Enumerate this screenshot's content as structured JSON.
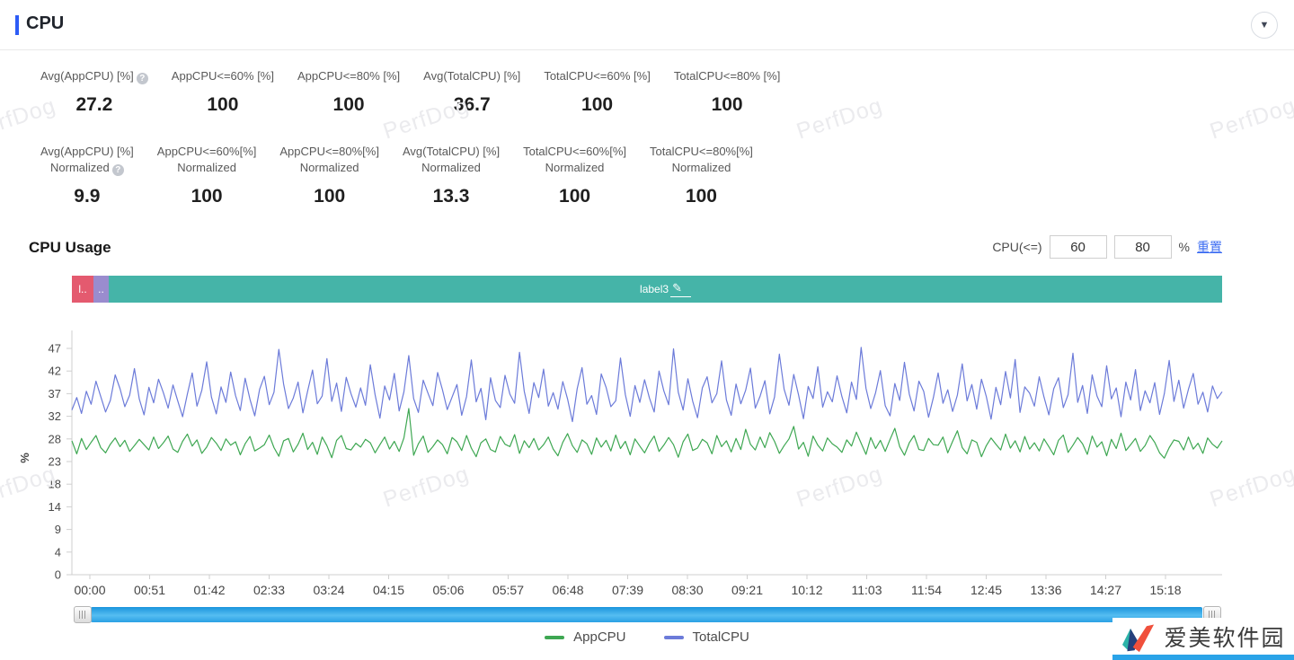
{
  "header": {
    "title": "CPU",
    "collapse_icon": "▼"
  },
  "stats": {
    "row1": [
      {
        "lines": [
          "Avg(AppCPU) [%]"
        ],
        "value": "27.2",
        "help": true
      },
      {
        "lines": [
          "AppCPU<=60% [%]"
        ],
        "value": "100",
        "help": false
      },
      {
        "lines": [
          "AppCPU<=80% [%]"
        ],
        "value": "100",
        "help": false
      },
      {
        "lines": [
          "Avg(TotalCPU) [%]"
        ],
        "value": "36.7",
        "help": false
      },
      {
        "lines": [
          "TotalCPU<=60% [%]"
        ],
        "value": "100",
        "help": false
      },
      {
        "lines": [
          "TotalCPU<=80% [%]"
        ],
        "value": "100",
        "help": false
      }
    ],
    "row2": [
      {
        "lines": [
          "Avg(AppCPU) [%]",
          "Normalized"
        ],
        "value": "9.9",
        "help": true
      },
      {
        "lines": [
          "AppCPU<=60%[%]",
          "Normalized"
        ],
        "value": "100",
        "help": false
      },
      {
        "lines": [
          "AppCPU<=80%[%]",
          "Normalized"
        ],
        "value": "100",
        "help": false
      },
      {
        "lines": [
          "Avg(TotalCPU) [%]",
          "Normalized"
        ],
        "value": "13.3",
        "help": false
      },
      {
        "lines": [
          "TotalCPU<=60%[%]",
          "Normalized"
        ],
        "value": "100",
        "help": false
      },
      {
        "lines": [
          "TotalCPU<=80%[%]",
          "Normalized"
        ],
        "value": "100",
        "help": false
      }
    ]
  },
  "section": {
    "title": "CPU Usage",
    "threshold_label": "CPU(<=)",
    "input1": "60",
    "input2": "80",
    "unit": "%",
    "reset_label": "重置"
  },
  "range_bar": {
    "segments": [
      {
        "label": "l..",
        "color": "#e45a6f",
        "width": 24,
        "editable": false
      },
      {
        "label": "..",
        "color": "#9a8cce",
        "width": 17,
        "editable": false
      },
      {
        "label": "label3",
        "color": "#45b4a8",
        "width": 0,
        "editable": true
      }
    ],
    "edit_icon": "✎"
  },
  "chart_data": {
    "type": "line",
    "title": "CPU Usage",
    "xlabel": "",
    "ylabel": "%",
    "ylim": [
      0,
      47
    ],
    "grid": false,
    "legend_position": "bottom",
    "y_ticks": [
      0,
      4,
      9,
      14,
      18,
      23,
      28,
      32,
      37,
      42,
      47
    ],
    "x_ticks": [
      "00:00",
      "00:51",
      "01:42",
      "02:33",
      "03:24",
      "04:15",
      "05:06",
      "05:57",
      "06:48",
      "07:39",
      "08:30",
      "09:21",
      "10:12",
      "11:03",
      "11:54",
      "12:45",
      "13:36",
      "14:27",
      "15:18"
    ],
    "x_tick_interval_seconds": 51,
    "series": [
      {
        "name": "AppCPU",
        "color": "#3EA752",
        "values": [
          27.8,
          25.1,
          28.3,
          26.0,
          27.5,
          28.9,
          26.4,
          25.3,
          27.1,
          28.4,
          26.6,
          27.9,
          25.6,
          26.8,
          28.1,
          27.0,
          25.9,
          28.6,
          26.2,
          27.4,
          28.8,
          26.1,
          25.4,
          27.7,
          29.2,
          26.7,
          28.0,
          25.2,
          26.5,
          28.5,
          27.3,
          25.8,
          28.2,
          26.9,
          27.6,
          24.9,
          27.2,
          28.7,
          25.7,
          26.3,
          27.0,
          29.0,
          26.4,
          24.6,
          27.8,
          28.3,
          25.5,
          27.1,
          29.4,
          26.0,
          27.5,
          25.0,
          28.6,
          26.8,
          24.3,
          27.9,
          28.9,
          26.2,
          25.9,
          27.3,
          26.5,
          28.1,
          27.4,
          25.3,
          27.0,
          28.6,
          26.1,
          27.7,
          25.6,
          28.4,
          34.5,
          24.8,
          27.2,
          28.8,
          25.4,
          26.6,
          28.0,
          27.0,
          25.1,
          28.5,
          27.6,
          25.8,
          28.9,
          26.3,
          24.5,
          27.4,
          28.2,
          26.0,
          25.5,
          28.7,
          27.1,
          26.6,
          29.1,
          25.2,
          27.8,
          26.4,
          28.3,
          25.9,
          27.0,
          28.6,
          26.1,
          24.7,
          27.5,
          29.3,
          26.8,
          25.4,
          28.0,
          27.2,
          25.0,
          28.4,
          26.5,
          27.9,
          25.7,
          29.0,
          26.2,
          27.7,
          24.9,
          28.2,
          26.7,
          25.3,
          27.3,
          28.8,
          25.6,
          26.9,
          28.5,
          27.0,
          24.4,
          27.6,
          29.2,
          25.8,
          26.3,
          28.1,
          27.4,
          25.1,
          28.9,
          26.6,
          27.8,
          25.5,
          28.3,
          26.0,
          30.2,
          27.1,
          25.9,
          28.6,
          26.4,
          29.5,
          27.7,
          25.2,
          26.8,
          28.2,
          30.8,
          26.1,
          27.5,
          24.6,
          28.8,
          26.9,
          25.7,
          28.4,
          27.2,
          26.5,
          25.4,
          28.0,
          26.7,
          29.6,
          27.3,
          25.0,
          28.5,
          26.2,
          27.9,
          25.6,
          28.1,
          30.4,
          26.6,
          24.8,
          27.4,
          28.9,
          26.0,
          25.8,
          28.3,
          27.0,
          26.9,
          28.6,
          25.3,
          27.7,
          29.9,
          26.4,
          25.1,
          28.0,
          27.5,
          24.5,
          26.8,
          28.4,
          27.1,
          25.9,
          29.2,
          26.3,
          27.8,
          25.5,
          28.7,
          26.1,
          27.4,
          25.7,
          28.2,
          26.6,
          24.9,
          27.9,
          29.0,
          25.4,
          26.9,
          28.5,
          27.2,
          25.0,
          28.8,
          26.5,
          27.6,
          24.7,
          28.1,
          26.2,
          29.4,
          25.8,
          27.0,
          28.3,
          25.6,
          26.8,
          28.9,
          27.5,
          25.3,
          24.2,
          26.4,
          28.0,
          27.7,
          25.9,
          28.6,
          26.1,
          27.3,
          25.2,
          28.4,
          27.1,
          26.3,
          27.8
        ]
      },
      {
        "name": "TotalCPU",
        "color": "#6C7BD9",
        "values": [
          34.2,
          36.8,
          33.5,
          38.1,
          35.4,
          40.2,
          37.0,
          33.8,
          36.2,
          41.5,
          38.6,
          34.9,
          37.3,
          42.8,
          36.5,
          33.2,
          38.9,
          35.7,
          40.6,
          37.8,
          34.6,
          39.4,
          36.1,
          32.8,
          37.5,
          41.9,
          35.0,
          38.3,
          44.2,
          36.9,
          33.4,
          39.0,
          35.8,
          42.1,
          37.2,
          34.1,
          40.8,
          36.4,
          33.0,
          38.5,
          41.2,
          35.3,
          37.9,
          46.8,
          39.6,
          34.5,
          36.7,
          40.0,
          33.6,
          38.2,
          42.5,
          35.5,
          37.1,
          44.9,
          36.0,
          39.8,
          33.9,
          41.0,
          37.6,
          34.8,
          38.8,
          35.2,
          43.6,
          37.4,
          32.5,
          39.2,
          36.3,
          41.8,
          34.0,
          38.0,
          45.5,
          36.6,
          33.7,
          40.4,
          37.7,
          35.1,
          42.0,
          38.4,
          34.3,
          36.9,
          39.5,
          33.1,
          37.0,
          44.6,
          35.9,
          38.7,
          32.2,
          40.9,
          36.2,
          34.7,
          41.4,
          37.5,
          35.6,
          46.2,
          38.1,
          33.5,
          39.9,
          36.8,
          42.7,
          35.0,
          37.8,
          34.4,
          40.1,
          36.5,
          31.8,
          38.6,
          43.0,
          35.4,
          37.2,
          33.3,
          41.7,
          38.9,
          34.9,
          36.1,
          45.0,
          37.4,
          32.9,
          39.3,
          35.8,
          40.5,
          36.7,
          33.8,
          42.3,
          38.2,
          35.3,
          46.9,
          37.9,
          34.2,
          40.7,
          36.0,
          32.6,
          38.8,
          41.1,
          35.7,
          37.6,
          44.4,
          36.3,
          33.1,
          39.6,
          35.5,
          38.3,
          42.9,
          34.6,
          37.1,
          40.3,
          33.4,
          36.9,
          45.8,
          38.5,
          35.2,
          41.6,
          37.3,
          32.4,
          39.1,
          36.6,
          43.2,
          34.8,
          38.0,
          35.9,
          41.3,
          37.0,
          33.6,
          40.0,
          36.4,
          47.2,
          38.7,
          34.5,
          37.8,
          42.4,
          35.1,
          33.0,
          39.7,
          36.2,
          44.1,
          37.5,
          34.0,
          40.2,
          38.1,
          32.7,
          36.8,
          41.9,
          35.6,
          38.4,
          33.9,
          37.3,
          43.8,
          36.1,
          39.5,
          34.4,
          40.6,
          37.0,
          32.3,
          38.9,
          35.3,
          42.2,
          36.7,
          44.7,
          33.7,
          39.0,
          37.7,
          35.0,
          41.1,
          36.9,
          33.2,
          38.6,
          40.9,
          34.7,
          37.4,
          46.0,
          35.8,
          39.3,
          33.5,
          41.5,
          37.1,
          34.9,
          43.4,
          36.5,
          38.8,
          32.8,
          40.0,
          36.3,
          42.6,
          34.1,
          38.2,
          35.7,
          39.9,
          33.3,
          37.6,
          44.5,
          36.0,
          40.4,
          34.6,
          38.5,
          41.8,
          35.4,
          37.9,
          33.8,
          39.2,
          36.6,
          38.0
        ]
      }
    ]
  },
  "watermark": {
    "text": "PerfDog"
  },
  "footer_logo": {
    "text": "爱美软件园"
  }
}
